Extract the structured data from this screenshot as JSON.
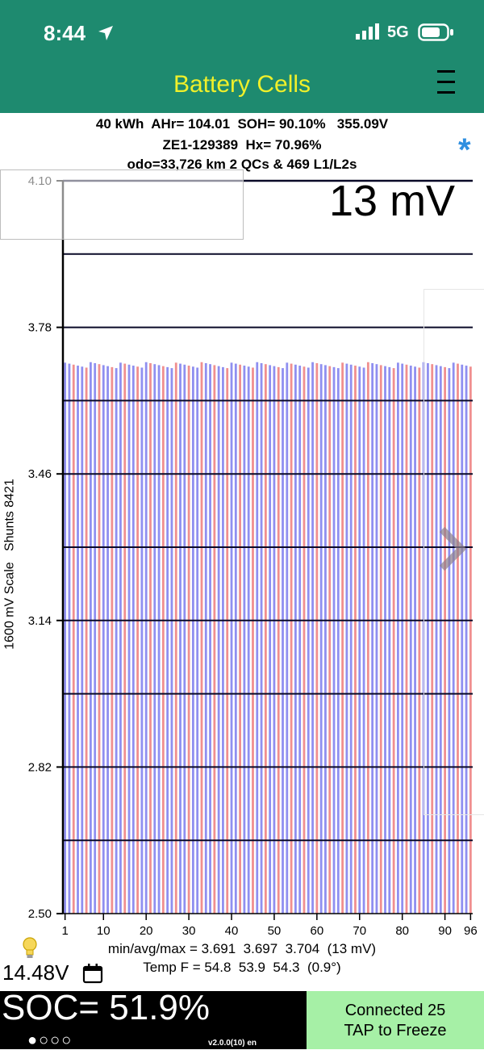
{
  "status_bar": {
    "time": "8:44",
    "network": "5G"
  },
  "app": {
    "title": "Battery Cells"
  },
  "summary": {
    "line1": "40 kWh  AHr= 104.01  SOH= 90.10%   355.09V",
    "line2": "ZE1-129389  Hx= 70.96%",
    "line3": "odo=33,726 km 2 QCs & 469 L1/L2s"
  },
  "spread_label": "13 mV",
  "y_axis_label": "1600 mV Scale   Shunts 8421",
  "chart_data": {
    "type": "bar",
    "cell_count": 96,
    "ylim": [
      2.5,
      4.1
    ],
    "y_ticks": [
      "4.10",
      "3.78",
      "3.46",
      "3.14",
      "2.82",
      "2.50"
    ],
    "y_tick_values": [
      4.1,
      3.78,
      3.46,
      3.14,
      2.82,
      2.5
    ],
    "x_ticks": [
      "1",
      "10",
      "20",
      "30",
      "40",
      "50",
      "60",
      "70",
      "80",
      "90",
      "96"
    ],
    "x_tick_values": [
      1,
      10,
      20,
      30,
      40,
      50,
      60,
      70,
      80,
      90,
      96
    ],
    "cell_min_v": 3.691,
    "cell_avg_v": 3.697,
    "cell_max_v": 3.704,
    "colors": {
      "blue_cell": "#8f8ff0",
      "red_cell": "#f08f8f",
      "grid": "#0a0a28"
    }
  },
  "stats": {
    "line1": "min/avg/max = 3.691  3.697  3.704  (13 mV)",
    "line2": "Temp F = 54.8  53.9  54.3  (0.9°)"
  },
  "aux_voltage": "14.48V",
  "soc": "SOC= 51.9%",
  "dots": "●○○○",
  "version": "v2.0.0(10) en",
  "connection": {
    "line1": "Connected 25",
    "line2": "TAP to Freeze"
  },
  "theme": {
    "header_bg": "#1e8a6f",
    "title_color": "#f0f02a",
    "connect_bg": "#a6f0a6"
  }
}
